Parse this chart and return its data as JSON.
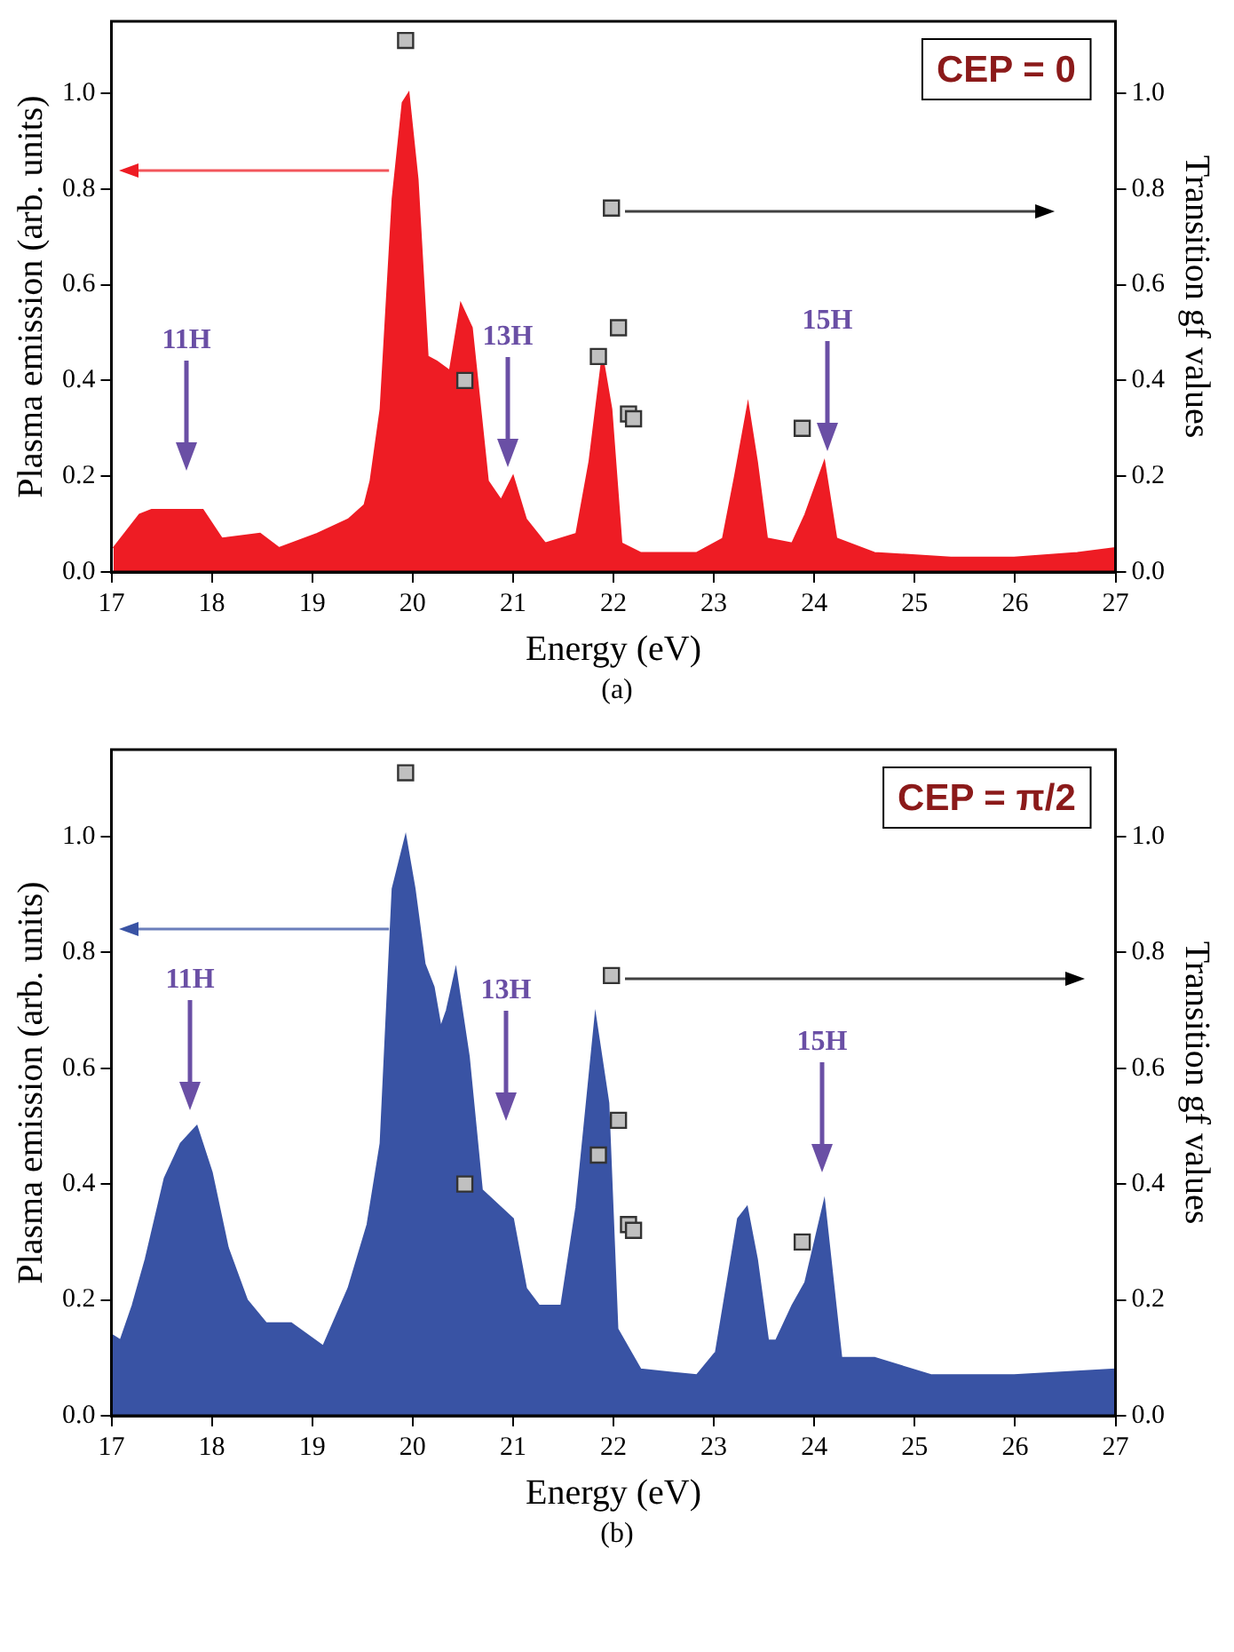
{
  "chart_data": [
    {
      "type": "area",
      "xlabel": "Energy (eV)",
      "ylabel": "Plasma emission (arb. units)",
      "y2label": "Transition gf values",
      "xlim": [
        17,
        27
      ],
      "xticks": [
        17,
        18,
        19,
        20,
        21,
        22,
        23,
        24,
        25,
        26,
        27
      ],
      "ylim": [
        0,
        1.15
      ],
      "yticks": [
        {
          "value": 0,
          "label": "0.0"
        },
        {
          "value": 0.2,
          "label": "0.2"
        },
        {
          "value": 0.4,
          "label": "0.4"
        },
        {
          "value": 0.6,
          "label": "0.6"
        },
        {
          "value": 0.8,
          "label": "0.8"
        },
        {
          "value": 1,
          "label": "1.0"
        }
      ],
      "y2lim": [
        0,
        1.15
      ],
      "y2ticks": [
        {
          "value": 0,
          "label": "0.0"
        },
        {
          "value": 0.2,
          "label": "0.2"
        },
        {
          "value": 0.4,
          "label": "0.4"
        },
        {
          "value": 0.6,
          "label": "0.6"
        },
        {
          "value": 0.8,
          "label": "0.8"
        },
        {
          "value": 1,
          "label": "1.0"
        }
      ],
      "grid": false,
      "legend": false,
      "series": [
        {
          "color": "#ee1c24",
          "x": [
            17.02,
            17.28,
            17.4,
            17.59,
            17.75,
            17.91,
            18.1,
            18.48,
            18.67,
            19.05,
            19.36,
            19.52,
            19.58,
            19.68,
            19.8,
            19.9,
            19.96,
            20.05,
            20.15,
            20.24,
            20.37,
            20.48,
            20.59,
            20.75,
            20.88,
            21.0,
            21.13,
            21.32,
            21.63,
            21.76,
            21.89,
            21.98,
            22.08,
            22.27,
            22.83,
            23.09,
            23.21,
            23.34,
            23.43,
            23.53,
            23.78,
            23.91,
            24.1,
            24.22,
            24.6,
            25.36,
            25.99,
            26.62,
            27.0
          ],
          "values": [
            0.05,
            0.12,
            0.13,
            0.13,
            0.13,
            0.13,
            0.07,
            0.08,
            0.05,
            0.08,
            0.11,
            0.14,
            0.19,
            0.34,
            0.78,
            0.98,
            1.0,
            0.82,
            0.45,
            0.44,
            0.42,
            0.56,
            0.51,
            0.19,
            0.15,
            0.2,
            0.11,
            0.06,
            0.08,
            0.23,
            0.45,
            0.34,
            0.06,
            0.04,
            0.04,
            0.07,
            0.2,
            0.35,
            0.23,
            0.07,
            0.06,
            0.12,
            0.23,
            0.07,
            0.04,
            0.03,
            0.03,
            0.04,
            0.05
          ]
        },
        {
          "type": "scatter",
          "axis": "y2",
          "marker": "square",
          "color": "#c0c0c0",
          "x": [
            19.93,
            20.52,
            21.85,
            21.98,
            22.05,
            22.15,
            22.2,
            23.88
          ],
          "values": [
            1.11,
            0.4,
            0.45,
            0.76,
            0.51,
            0.33,
            0.32,
            0.3
          ]
        }
      ],
      "annotations": [
        "11H",
        "13H",
        "15H",
        "CEP = 0",
        "(a)"
      ]
    },
    {
      "type": "area",
      "xlabel": "Energy (eV)",
      "ylabel": "Plasma emission (arb. units)",
      "y2label": "Transition gf values",
      "xlim": [
        17,
        27
      ],
      "xticks": [
        17,
        18,
        19,
        20,
        21,
        22,
        23,
        24,
        25,
        26,
        27
      ],
      "ylim": [
        0,
        1.15
      ],
      "yticks": [
        {
          "value": 0,
          "label": "0.0"
        },
        {
          "value": 0.2,
          "label": "0.2"
        },
        {
          "value": 0.4,
          "label": "0.4"
        },
        {
          "value": 0.6,
          "label": "0.6"
        },
        {
          "value": 0.8,
          "label": "0.8"
        },
        {
          "value": 1,
          "label": "1.0"
        }
      ],
      "y2lim": [
        0,
        1.15
      ],
      "y2ticks": [
        {
          "value": 0,
          "label": "0.0"
        },
        {
          "value": 0.2,
          "label": "0.2"
        },
        {
          "value": 0.4,
          "label": "0.4"
        },
        {
          "value": 0.6,
          "label": "0.6"
        },
        {
          "value": 0.8,
          "label": "0.8"
        },
        {
          "value": 1,
          "label": "1.0"
        }
      ],
      "grid": false,
      "legend": false,
      "series": [
        {
          "color": "#3953a4",
          "x": [
            17.0,
            17.09,
            17.21,
            17.34,
            17.53,
            17.69,
            17.85,
            18.0,
            18.16,
            18.35,
            18.54,
            18.79,
            19.11,
            19.36,
            19.55,
            19.68,
            19.8,
            19.93,
            20.02,
            20.12,
            20.21,
            20.28,
            20.34,
            20.43,
            20.56,
            20.69,
            21.0,
            21.13,
            21.26,
            21.48,
            21.63,
            21.82,
            21.95,
            22.04,
            22.27,
            22.83,
            23.02,
            23.24,
            23.33,
            23.43,
            23.54,
            23.62,
            23.78,
            23.91,
            24.1,
            24.27,
            24.6,
            25.17,
            25.99,
            27.0
          ],
          "values": [
            0.14,
            0.13,
            0.19,
            0.27,
            0.41,
            0.47,
            0.5,
            0.42,
            0.29,
            0.2,
            0.16,
            0.16,
            0.12,
            0.22,
            0.33,
            0.47,
            0.91,
            1.0,
            0.91,
            0.78,
            0.74,
            0.67,
            0.7,
            0.77,
            0.62,
            0.39,
            0.34,
            0.22,
            0.19,
            0.19,
            0.36,
            0.69,
            0.54,
            0.15,
            0.08,
            0.07,
            0.11,
            0.34,
            0.36,
            0.27,
            0.13,
            0.13,
            0.19,
            0.23,
            0.37,
            0.1,
            0.1,
            0.07,
            0.07,
            0.08
          ]
        },
        {
          "type": "scatter",
          "axis": "y2",
          "marker": "square",
          "color": "#c0c0c0",
          "x": [
            19.93,
            20.52,
            21.85,
            21.98,
            22.05,
            22.15,
            22.2,
            23.88
          ],
          "values": [
            1.11,
            0.4,
            0.45,
            0.76,
            0.51,
            0.33,
            0.32,
            0.3
          ]
        }
      ],
      "annotations": [
        "11H",
        "13H",
        "15H",
        "CEP = π/2",
        "(b)"
      ]
    }
  ]
}
